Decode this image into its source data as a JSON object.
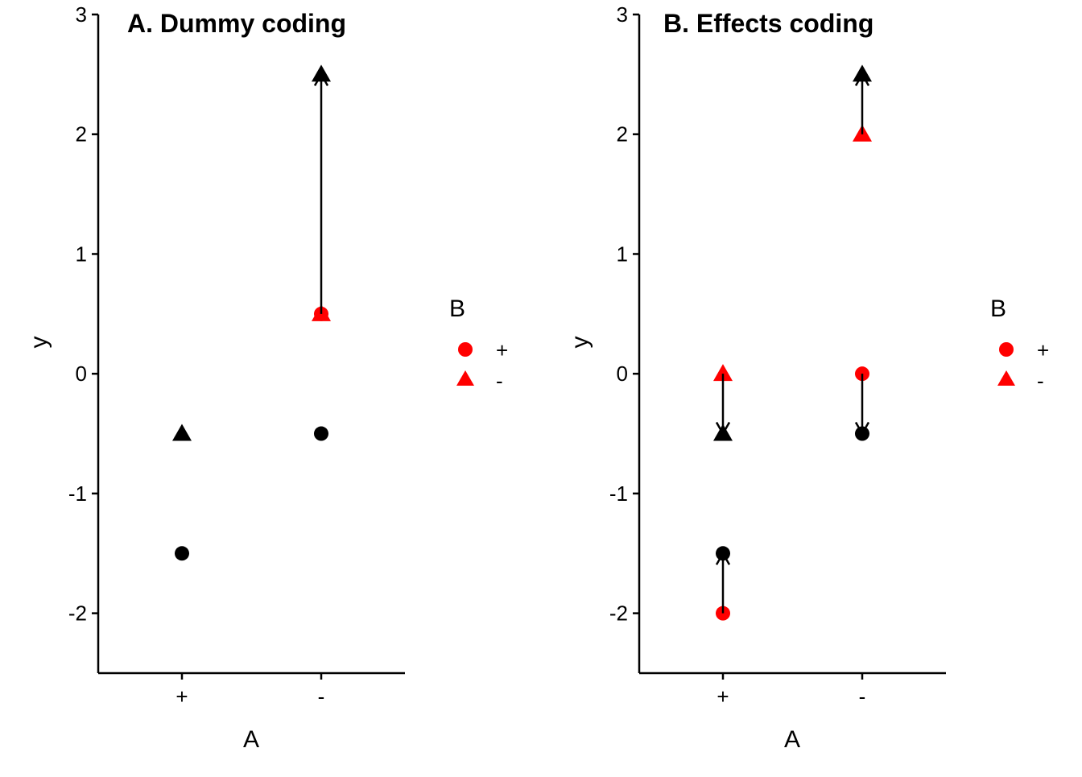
{
  "chart_data": [
    {
      "type": "scatter",
      "title": "A. Dummy coding",
      "xlabel": "A",
      "ylabel": "y",
      "categories": [
        "+",
        "-"
      ],
      "ylim": [
        -2.5,
        3
      ],
      "yticks": [
        3,
        2,
        1,
        0,
        -1,
        -2
      ],
      "grid": false,
      "legend": {
        "title": "B",
        "placement": "right",
        "entries": [
          {
            "label": "+",
            "shape": "circle",
            "color": "#FF0000"
          },
          {
            "label": "-",
            "shape": "triangle",
            "color": "#FF0000"
          }
        ]
      },
      "points": [
        {
          "x": "+",
          "y": -1.5,
          "shape": "circle",
          "color": "#000000"
        },
        {
          "x": "+",
          "y": -0.5,
          "shape": "triangle",
          "color": "#000000"
        },
        {
          "x": "-",
          "y": -0.5,
          "shape": "circle",
          "color": "#000000"
        },
        {
          "x": "-",
          "y": 2.5,
          "shape": "triangle",
          "color": "#000000"
        },
        {
          "x": "-",
          "y": 0.5,
          "shape": "circle",
          "color": "#FF0000"
        },
        {
          "x": "-",
          "y": 0.5,
          "shape": "triangle",
          "color": "#FF0000"
        }
      ],
      "arrows": [
        {
          "x": "-",
          "from": 0.5,
          "to": 2.5
        }
      ]
    },
    {
      "type": "scatter",
      "title": "B. Effects coding",
      "xlabel": "A",
      "ylabel": "y",
      "categories": [
        "+",
        "-"
      ],
      "ylim": [
        -2.5,
        3
      ],
      "yticks": [
        3,
        2,
        1,
        0,
        -1,
        -2
      ],
      "grid": false,
      "legend": {
        "title": "B",
        "placement": "right",
        "entries": [
          {
            "label": "+",
            "shape": "circle",
            "color": "#FF0000"
          },
          {
            "label": "-",
            "shape": "triangle",
            "color": "#FF0000"
          }
        ]
      },
      "points": [
        {
          "x": "+",
          "y": -1.5,
          "shape": "circle",
          "color": "#000000"
        },
        {
          "x": "+",
          "y": -0.5,
          "shape": "triangle",
          "color": "#000000"
        },
        {
          "x": "-",
          "y": -0.5,
          "shape": "circle",
          "color": "#000000"
        },
        {
          "x": "-",
          "y": 2.5,
          "shape": "triangle",
          "color": "#000000"
        },
        {
          "x": "+",
          "y": -2,
          "shape": "circle",
          "color": "#FF0000"
        },
        {
          "x": "+",
          "y": 0,
          "shape": "triangle",
          "color": "#FF0000"
        },
        {
          "x": "-",
          "y": 0,
          "shape": "circle",
          "color": "#FF0000"
        },
        {
          "x": "-",
          "y": 2,
          "shape": "triangle",
          "color": "#FF0000"
        }
      ],
      "arrows": [
        {
          "x": "+",
          "from": -2,
          "to": -1.5
        },
        {
          "x": "+",
          "from": 0,
          "to": -0.5
        },
        {
          "x": "-",
          "from": 0,
          "to": -0.5
        },
        {
          "x": "-",
          "from": 2,
          "to": 2.5
        }
      ]
    }
  ]
}
